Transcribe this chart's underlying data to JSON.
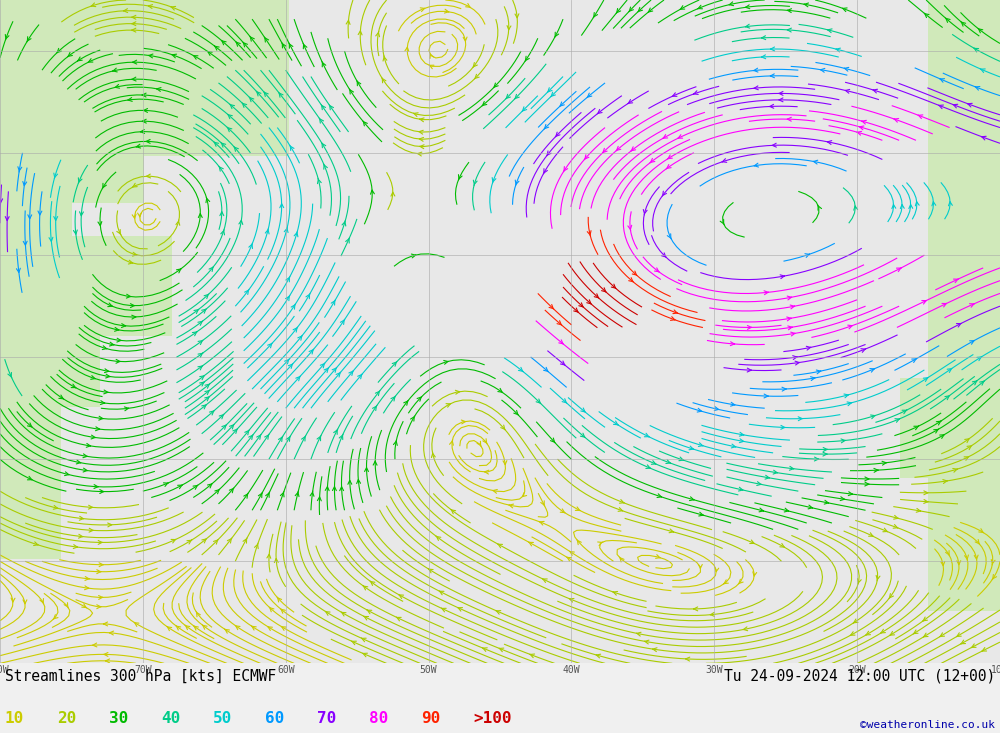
{
  "title_left": "Streamlines 300 hPa [kts] ECMWF",
  "title_right": "Tu 24-09-2024 12:00 UTC (12+00)",
  "credit": "©weatheronline.co.uk",
  "legend_values": [
    "10",
    "20",
    "30",
    "40",
    "50",
    "60",
    "70",
    "80",
    "90",
    ">100"
  ],
  "legend_colors": [
    "#cccc00",
    "#aacc00",
    "#00bb00",
    "#00cc88",
    "#00cccc",
    "#0099ff",
    "#8800ff",
    "#ff00ff",
    "#ff2200",
    "#cc0000"
  ],
  "speed_bins": [
    0,
    10,
    20,
    30,
    40,
    50,
    60,
    70,
    80,
    90,
    100,
    300
  ],
  "bg_color": "#f0f0f0",
  "land_color": "#d4edbc",
  "ocean_color": "#e8e8e8",
  "grid_color": "#aaaaaa",
  "text_color": "#000000",
  "credit_color": "#0000aa",
  "figsize": [
    10.0,
    7.33
  ],
  "dpi": 100,
  "lon_min": -80,
  "lon_max": -10,
  "lat_min": 10,
  "lat_max": 75
}
